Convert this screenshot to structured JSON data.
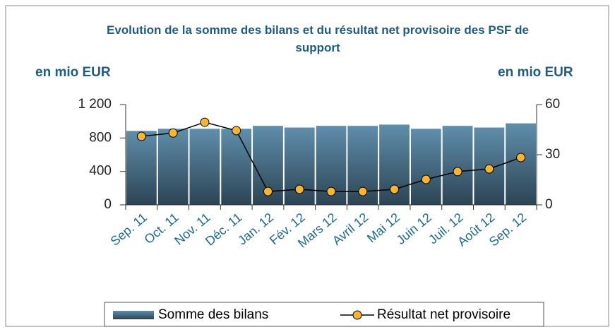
{
  "chart_data": {
    "type": "bar_line",
    "title": "Evolution de la somme des bilans et du résultat net provisoire des PSF de support",
    "y_label": "en mio EUR",
    "y2_label": "en mio EUR",
    "categories": [
      "Sep. 11",
      "Oct. 11",
      "Nov. 11",
      "Déc. 11",
      "Jan. 12",
      "Fév. 12",
      "Mars 12",
      "Avril 12",
      "Mai 12",
      "Juin 12",
      "Juil. 12",
      "Août 12",
      "Sep. 12"
    ],
    "series": [
      {
        "name": "Somme des bilans",
        "type": "bar",
        "color": "#5f8eab",
        "values": [
          885,
          910,
          910,
          910,
          945,
          925,
          945,
          945,
          960,
          910,
          945,
          925,
          975
        ]
      },
      {
        "name": "Résultat net provisoire",
        "type": "line",
        "axis": "y2",
        "color": "#000000",
        "marker_color": "#f7b533",
        "values": [
          41,
          43,
          49.4,
          44.4,
          8,
          9.3,
          8,
          8,
          9.3,
          15.2,
          19.9,
          21.5,
          28.3
        ]
      }
    ],
    "ylim": [
      0,
      1200
    ],
    "yticks": [
      0,
      400,
      800,
      {
        "value": 1200,
        "label": "1 200"
      }
    ],
    "y2lim": [
      0,
      60
    ],
    "y2ticks": [
      0,
      30,
      60
    ],
    "legend": "bottom"
  }
}
